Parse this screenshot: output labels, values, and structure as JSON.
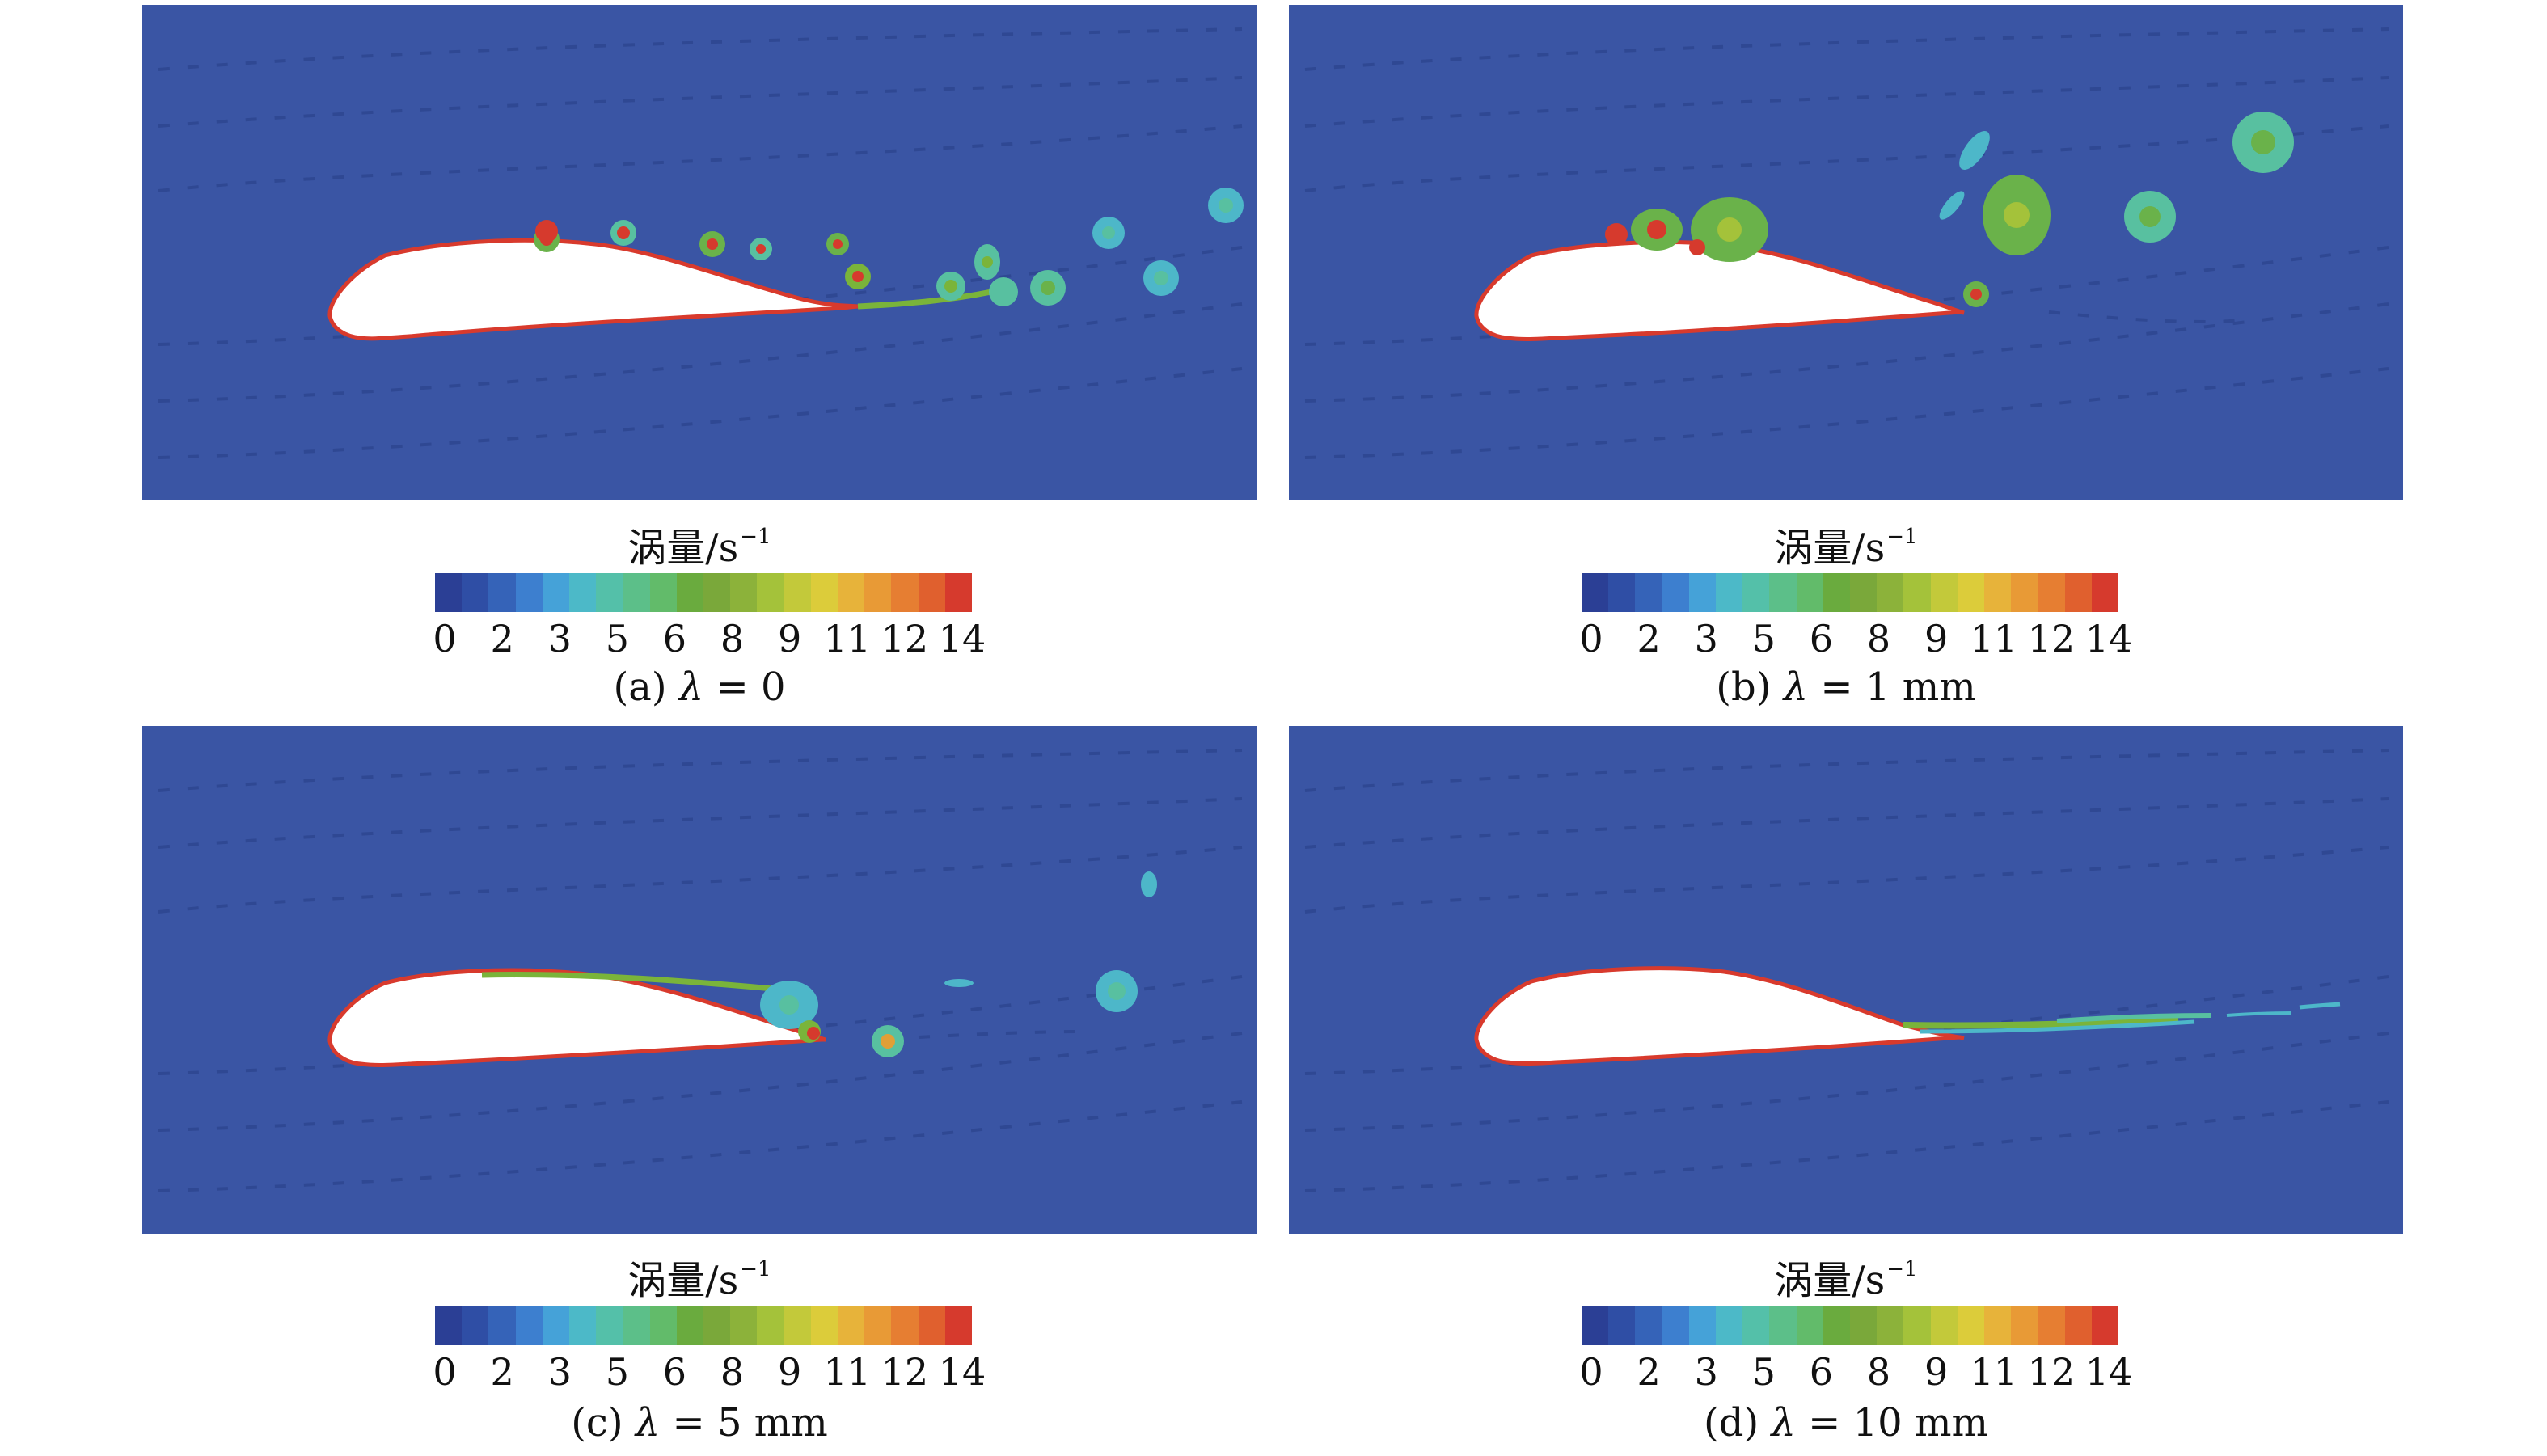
{
  "colorbar": {
    "label": "涡量/s",
    "exponent": "−1",
    "ticks": [
      "0",
      "2",
      "3",
      "5",
      "6",
      "8",
      "9",
      "11",
      "12",
      "14"
    ],
    "colors": [
      "#2b3f95",
      "#2f4ea5",
      "#3563b8",
      "#3d7fcf",
      "#45a2d8",
      "#4cb9c8",
      "#54c0a9",
      "#5cbf89",
      "#62bb6a",
      "#6aab3e",
      "#7aa83a",
      "#8cb23a",
      "#a4c23a",
      "#c3c93a",
      "#dccc3a",
      "#e7b33a",
      "#e89a36",
      "#e67e32",
      "#e0602e",
      "#d63a2d"
    ]
  },
  "panels": [
    {
      "id": "a",
      "caption_prefix": "(a)",
      "lambda_symbol": "λ",
      "caption_value": " = 0"
    },
    {
      "id": "b",
      "caption_prefix": "(b)",
      "lambda_symbol": "λ",
      "caption_value": " = 1 mm"
    },
    {
      "id": "c",
      "caption_prefix": "(c)",
      "lambda_symbol": "λ",
      "caption_value": " = 5 mm"
    },
    {
      "id": "d",
      "caption_prefix": "(d)",
      "lambda_symbol": "λ",
      "caption_value": " = 10 mm"
    }
  ],
  "colors": {
    "field_background": "#3a55a4",
    "streamline": "#2f4893",
    "airfoil": "#ffffff"
  }
}
